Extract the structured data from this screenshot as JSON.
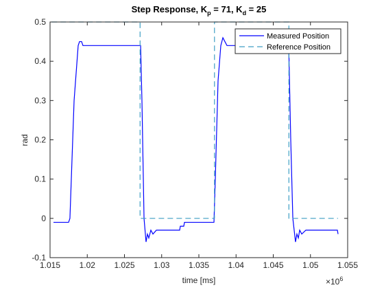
{
  "chart_data": {
    "type": "line",
    "title_parts": [
      "Step Response, K",
      "p",
      " = 71, K",
      "d",
      " = 25"
    ],
    "x_label": "time [ms]",
    "y_label": "rad",
    "x_exponent": {
      "base": "×10",
      "power": "6"
    },
    "xlim": [
      1015000,
      1055000
    ],
    "xticks": [
      {
        "value": 1015000,
        "label": "1.015"
      },
      {
        "value": 1020000,
        "label": "1.02"
      },
      {
        "value": 1025000,
        "label": "1.025"
      },
      {
        "value": 1030000,
        "label": "1.03"
      },
      {
        "value": 1035000,
        "label": "1.035"
      },
      {
        "value": 1040000,
        "label": "1.04"
      },
      {
        "value": 1045000,
        "label": "1.045"
      },
      {
        "value": 1050000,
        "label": "1.05"
      },
      {
        "value": 1055000,
        "label": "1.055"
      }
    ],
    "ylim": [
      -0.1,
      0.5
    ],
    "yticks": [
      -0.1,
      0,
      0.1,
      0.2,
      0.3,
      0.4,
      0.5
    ],
    "grid": false,
    "legend": "northeast",
    "series": [
      {
        "name": "Measured Position",
        "color": "#0000ff",
        "dash": "solid",
        "x": [
          1015460,
          1017490,
          1017670,
          1018230,
          1018780,
          1018960,
          1019240,
          1019420,
          1027170,
          1027350,
          1027630,
          1027900,
          1028090,
          1028270,
          1028550,
          1028830,
          1029290,
          1032420,
          1032510,
          1032970,
          1033070,
          1037030,
          1037210,
          1037580,
          1037950,
          1038230,
          1038500,
          1038780,
          1047080,
          1047350,
          1047630,
          1047990,
          1048180,
          1048370,
          1048550,
          1048830,
          1049380,
          1053620,
          1053710
        ],
        "values": [
          -0.01,
          -0.01,
          0.0,
          0.3,
          0.44,
          0.45,
          0.45,
          0.44,
          0.44,
          0.3,
          0.0,
          -0.06,
          -0.04,
          -0.05,
          -0.03,
          -0.04,
          -0.03,
          -0.03,
          -0.02,
          -0.02,
          -0.01,
          -0.01,
          0.1,
          0.35,
          0.44,
          0.46,
          0.45,
          0.44,
          0.44,
          0.2,
          0.0,
          -0.06,
          -0.04,
          -0.05,
          -0.03,
          -0.04,
          -0.03,
          -0.03,
          -0.04
        ]
      },
      {
        "name": "Reference Position",
        "color": "#3d9ec4",
        "dash": "dashed",
        "x": [
          1015200,
          1027100,
          1027100,
          1037100,
          1037100,
          1047100,
          1047100,
          1053700
        ],
        "values": [
          0.5,
          0.5,
          0,
          0,
          0.5,
          0.5,
          0,
          0
        ]
      }
    ]
  }
}
